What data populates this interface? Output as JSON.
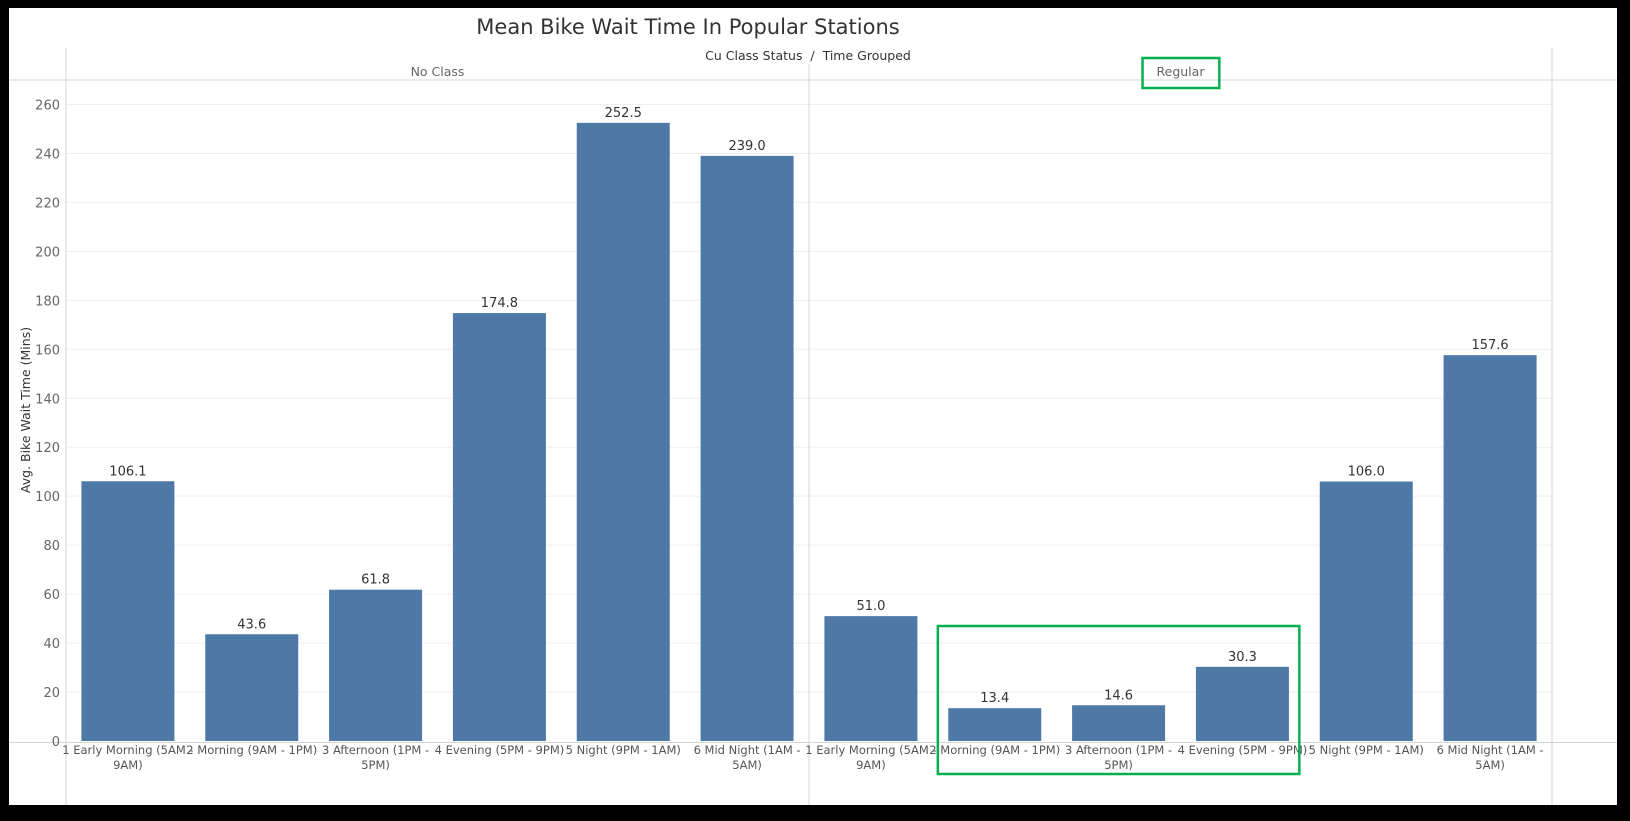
{
  "chart_data": {
    "type": "bar",
    "title": "Mean Bike Wait Time In Popular Stations",
    "column_header": "Cu Class Status  /  Time Grouped",
    "ylabel": "Avg. Bike Wait Time (Mins)",
    "ylim": [
      0,
      270
    ],
    "yticks": [
      0,
      20,
      40,
      60,
      80,
      100,
      120,
      140,
      160,
      180,
      200,
      220,
      240,
      260
    ],
    "grid": "horizontal",
    "bar_color": "#4e79a7",
    "highlight_color": "#00b050",
    "groups": [
      {
        "name": "No Class",
        "categories": [
          [
            "1 Early Morning (5AM -",
            "9AM)"
          ],
          [
            "2 Morning (9AM - 1PM)"
          ],
          [
            "3 Afternoon (1PM -",
            "5PM)"
          ],
          [
            "4 Evening (5PM - 9PM)"
          ],
          [
            "5 Night (9PM - 1AM)"
          ],
          [
            "6 Mid Night (1AM -",
            "5AM)"
          ]
        ],
        "values": [
          106.1,
          43.6,
          61.8,
          174.8,
          252.5,
          239.0
        ],
        "labels": [
          "106.1",
          "43.6",
          "61.8",
          "174.8",
          "252.5",
          "239.0"
        ]
      },
      {
        "name": "Regular",
        "categories": [
          [
            "1 Early Morning (5AM -",
            "9AM)"
          ],
          [
            "2 Morning (9AM - 1PM)"
          ],
          [
            "3 Afternoon (1PM -",
            "5PM)"
          ],
          [
            "4 Evening (5PM - 9PM)"
          ],
          [
            "5 Night (9PM - 1AM)"
          ],
          [
            "6 Mid Night (1AM -",
            "5AM)"
          ]
        ],
        "values": [
          51.0,
          13.4,
          14.6,
          30.3,
          106.0,
          157.6
        ],
        "labels": [
          "51.0",
          "13.4",
          "14.6",
          "30.3",
          "106.0",
          "157.6"
        ]
      }
    ],
    "highlights": [
      {
        "target": "group-header",
        "group": 1
      },
      {
        "target": "bars",
        "group": 1,
        "from": 1,
        "to": 3
      }
    ]
  }
}
